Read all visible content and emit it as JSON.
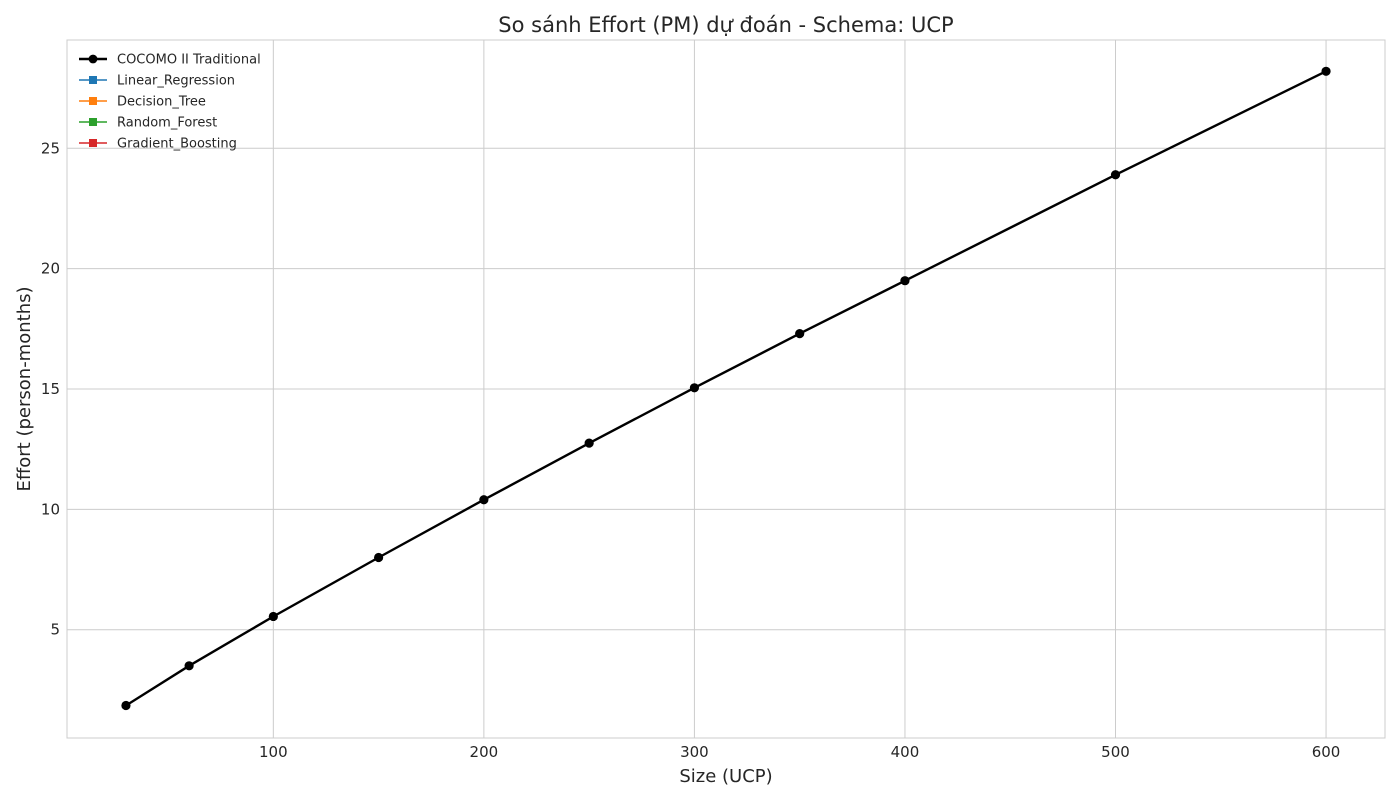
{
  "chart_data": {
    "type": "line",
    "title": "So sánh Effort (PM) dự đoán - Schema: UCP",
    "xlabel": "Size (UCP)",
    "ylabel": "Effort (person-months)",
    "xlim": [
      2,
      628
    ],
    "ylim": [
      0.5,
      29.5
    ],
    "xticks": [
      100,
      200,
      300,
      400,
      500,
      600
    ],
    "yticks": [
      5,
      10,
      15,
      20,
      25
    ],
    "grid": true,
    "legend_position": "top-left",
    "series": [
      {
        "name": "COCOMO II Traditional",
        "color": "#000000",
        "marker": "circle",
        "x": [
          30,
          60,
          100,
          150,
          200,
          250,
          300,
          350,
          400,
          500,
          600
        ],
        "y": [
          1.85,
          3.5,
          5.55,
          8.0,
          10.4,
          12.75,
          15.05,
          17.3,
          19.5,
          23.9,
          28.2
        ]
      },
      {
        "name": "Linear_Regression",
        "color": "#1f77b4",
        "marker": "square",
        "x": [],
        "y": []
      },
      {
        "name": "Decision_Tree",
        "color": "#ff7f0e",
        "marker": "square",
        "x": [],
        "y": []
      },
      {
        "name": "Random_Forest",
        "color": "#2ca02c",
        "marker": "square",
        "x": [],
        "y": []
      },
      {
        "name": "Gradient_Boosting",
        "color": "#d62728",
        "marker": "square",
        "x": [],
        "y": []
      }
    ]
  }
}
